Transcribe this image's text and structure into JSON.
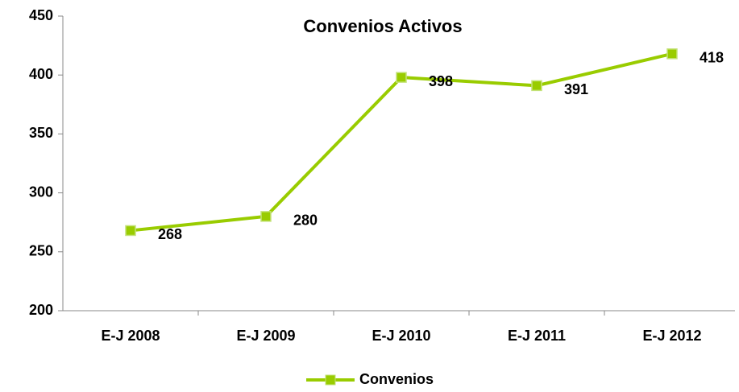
{
  "chart_data": {
    "type": "line",
    "title": "Convenios Activos",
    "categories": [
      "E-J 2008",
      "E-J 2009",
      "E-J 2010",
      "E-J 2011",
      "E-J 2012"
    ],
    "series": [
      {
        "name": "Convenios",
        "color": "#99cc00",
        "values": [
          268,
          280,
          398,
          391,
          418
        ]
      }
    ],
    "ylim": [
      200,
      450
    ],
    "yticks": [
      200,
      250,
      300,
      350,
      400,
      450
    ],
    "grid": false,
    "legend": "bottom"
  }
}
